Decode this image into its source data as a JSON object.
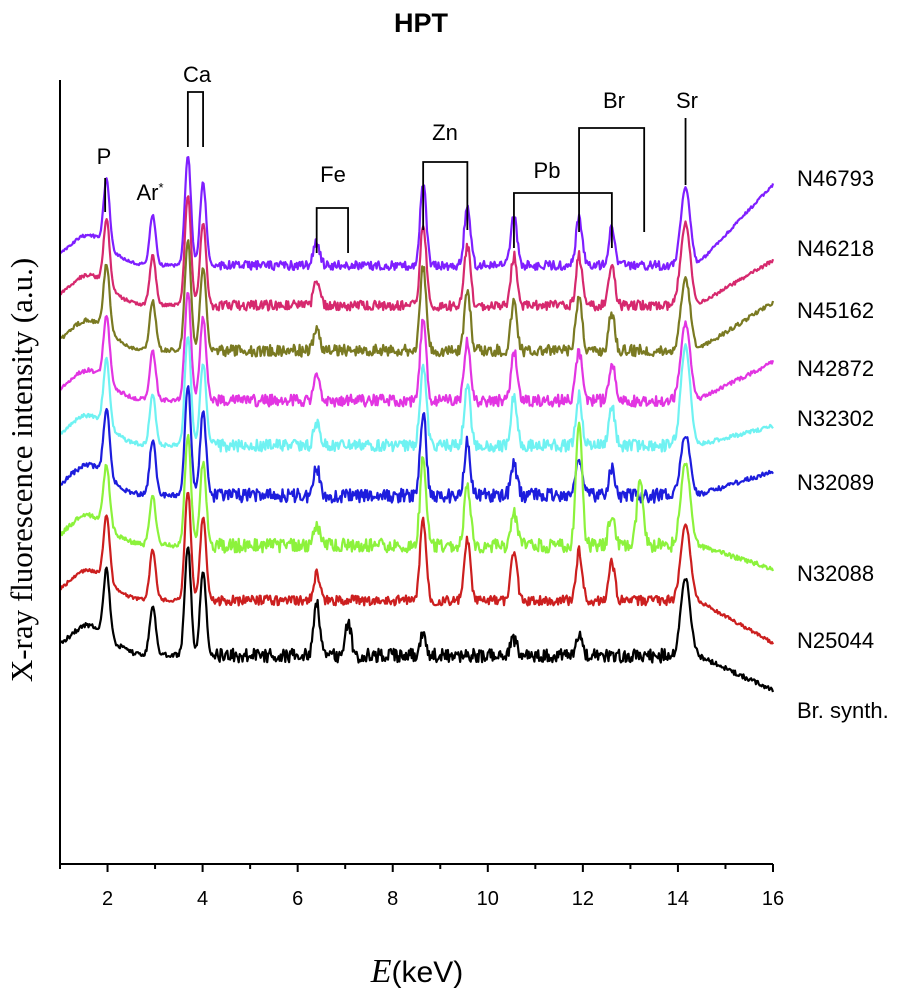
{
  "chart_data": {
    "type": "line",
    "title": "HPT",
    "xlabel_symbol": "E",
    "xlabel_unit": "(keV)",
    "ylabel": "X-ray fluorescence intensity (a.u.)",
    "xlim": [
      1,
      16
    ],
    "xticks": [
      2,
      4,
      6,
      8,
      10,
      12,
      14,
      16
    ],
    "y_ticks_shown": false,
    "stacked_offset_plot": true,
    "element_markers": [
      {
        "label": "P",
        "lines": [
          1.95
        ]
      },
      {
        "label": "Ar",
        "label_suffix": "*",
        "lines": [
          2.95
        ]
      },
      {
        "label": "Ca",
        "lines": [
          3.69,
          4.01
        ]
      },
      {
        "label": "Fe",
        "lines": [
          6.4,
          7.06
        ]
      },
      {
        "label": "Zn",
        "lines": [
          8.64,
          9.57
        ]
      },
      {
        "label": "Pb",
        "lines": [
          10.55,
          12.61
        ]
      },
      {
        "label": "Br",
        "lines": [
          11.92,
          13.29
        ]
      },
      {
        "label": "Sr",
        "lines": [
          14.16
        ]
      }
    ],
    "series": [
      {
        "name": "N46793",
        "color": "#7f1fff",
        "peaks": [
          [
            1.98,
            0.6
          ],
          [
            2.95,
            0.45
          ],
          [
            3.69,
            1.0
          ],
          [
            4.01,
            0.75
          ],
          [
            6.4,
            0.22
          ],
          [
            8.64,
            0.75
          ],
          [
            9.57,
            0.55
          ],
          [
            10.55,
            0.45
          ],
          [
            11.92,
            0.45
          ],
          [
            12.61,
            0.35
          ],
          [
            14.16,
            0.7
          ]
        ]
      },
      {
        "name": "N46218",
        "color": "#d6296e",
        "peaks": [
          [
            1.98,
            0.6
          ],
          [
            2.95,
            0.45
          ],
          [
            3.69,
            1.0
          ],
          [
            4.01,
            0.75
          ],
          [
            6.4,
            0.22
          ],
          [
            8.64,
            0.75
          ],
          [
            9.57,
            0.55
          ],
          [
            10.55,
            0.45
          ],
          [
            11.92,
            0.45
          ],
          [
            12.61,
            0.35
          ],
          [
            14.16,
            0.75
          ]
        ]
      },
      {
        "name": "N45162",
        "color": "#7a7a22",
        "peaks": [
          [
            1.98,
            0.6
          ],
          [
            2.95,
            0.45
          ],
          [
            3.69,
            1.0
          ],
          [
            4.01,
            0.75
          ],
          [
            6.4,
            0.2
          ],
          [
            8.64,
            0.75
          ],
          [
            9.57,
            0.55
          ],
          [
            10.55,
            0.45
          ],
          [
            11.92,
            0.5
          ],
          [
            12.61,
            0.35
          ],
          [
            14.16,
            0.65
          ]
        ]
      },
      {
        "name": "N42872",
        "color": "#e235e2",
        "peaks": [
          [
            1.98,
            0.6
          ],
          [
            2.95,
            0.45
          ],
          [
            3.69,
            1.0
          ],
          [
            4.01,
            0.75
          ],
          [
            6.4,
            0.2
          ],
          [
            8.64,
            0.75
          ],
          [
            9.57,
            0.55
          ],
          [
            10.55,
            0.45
          ],
          [
            11.92,
            0.45
          ],
          [
            12.61,
            0.35
          ],
          [
            14.16,
            0.7
          ]
        ]
      },
      {
        "name": "N32302",
        "color": "#6ff2f2",
        "peaks": [
          [
            1.98,
            0.6
          ],
          [
            2.95,
            0.45
          ],
          [
            3.69,
            1.0
          ],
          [
            4.01,
            0.75
          ],
          [
            6.4,
            0.2
          ],
          [
            8.64,
            0.75
          ],
          [
            9.57,
            0.55
          ],
          [
            10.55,
            0.45
          ],
          [
            11.92,
            0.45
          ],
          [
            12.61,
            0.35
          ],
          [
            14.16,
            0.9
          ]
        ]
      },
      {
        "name": "N32089",
        "color": "#1d1ddd",
        "peaks": [
          [
            1.98,
            0.6
          ],
          [
            2.95,
            0.5
          ],
          [
            3.69,
            1.0
          ],
          [
            4.01,
            0.75
          ],
          [
            6.4,
            0.25
          ],
          [
            8.64,
            0.75
          ],
          [
            9.57,
            0.5
          ],
          [
            10.55,
            0.3
          ],
          [
            11.92,
            0.35
          ],
          [
            12.61,
            0.25
          ],
          [
            14.16,
            0.55
          ]
        ]
      },
      {
        "name": "N32088",
        "color": "#8cf23c",
        "peaks": [
          [
            1.98,
            0.55
          ],
          [
            2.95,
            0.45
          ],
          [
            3.69,
            1.0
          ],
          [
            4.01,
            0.75
          ],
          [
            6.4,
            0.2
          ],
          [
            8.64,
            0.8
          ],
          [
            9.57,
            0.55
          ],
          [
            10.55,
            0.3
          ],
          [
            11.92,
            1.1
          ],
          [
            12.61,
            0.3
          ],
          [
            13.2,
            0.6
          ],
          [
            14.16,
            0.75
          ]
        ]
      },
      {
        "name": "N25044",
        "color": "#cc1f1f",
        "peaks": [
          [
            1.98,
            0.6
          ],
          [
            2.95,
            0.45
          ],
          [
            3.69,
            1.0
          ],
          [
            4.01,
            0.75
          ],
          [
            6.4,
            0.25
          ],
          [
            8.64,
            0.75
          ],
          [
            9.57,
            0.55
          ],
          [
            10.55,
            0.45
          ],
          [
            11.92,
            0.45
          ],
          [
            12.61,
            0.35
          ],
          [
            14.16,
            0.7
          ]
        ]
      },
      {
        "name": "Br. synth.",
        "color": "#000000",
        "peaks": [
          [
            1.98,
            0.6
          ],
          [
            2.95,
            0.45
          ],
          [
            3.69,
            1.0
          ],
          [
            4.01,
            0.75
          ],
          [
            6.4,
            0.5
          ],
          [
            7.06,
            0.3
          ],
          [
            8.64,
            0.2
          ],
          [
            10.55,
            0.15
          ],
          [
            11.92,
            0.2
          ],
          [
            14.16,
            0.7
          ]
        ]
      }
    ]
  }
}
